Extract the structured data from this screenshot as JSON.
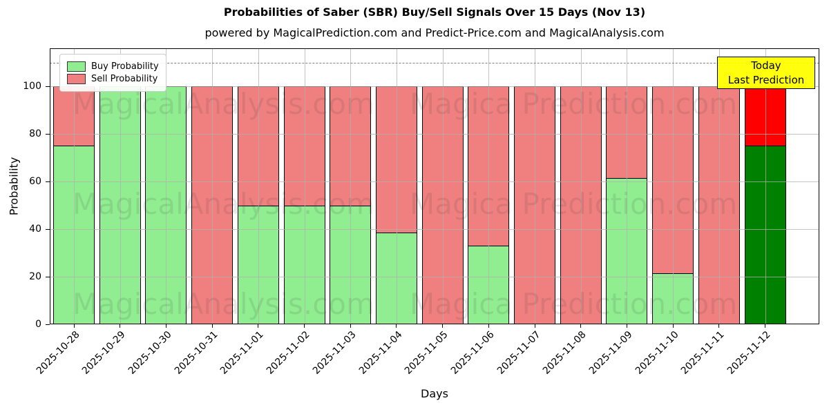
{
  "title": "Probabilities of Saber (SBR) Buy/Sell Signals Over 15 Days (Nov 13)",
  "subtitle": "powered by MagicalPrediction.com and Predict-Price.com and MagicalAnalysis.com",
  "axes": {
    "xlabel": "Days",
    "ylabel": "Probability",
    "yticks": [
      0,
      20,
      40,
      60,
      80,
      100
    ],
    "ylim": [
      0,
      116
    ],
    "grid": true,
    "threshold_line": {
      "y": 110,
      "style": "dashed",
      "color": "#7f7f7f"
    }
  },
  "legend": {
    "position": "upper left",
    "items": [
      {
        "label": "Buy Probability",
        "color": "#90ee90"
      },
      {
        "label": "Sell Probability",
        "color": "#f08080"
      }
    ]
  },
  "annotation": {
    "line1": "Today",
    "line2": "Last Prediction",
    "bg": "#ffff00",
    "border": "#000000"
  },
  "watermarks": {
    "left": "MagicalAnalysis.com",
    "right": "Magica Prediction.com",
    "color": "#3c3c3c",
    "opacity": 0.12
  },
  "chart_data": {
    "type": "bar",
    "stacked": true,
    "title": "Probabilities of Saber (SBR) Buy/Sell Signals Over 15 Days (Nov 13)",
    "xlabel": "Days",
    "ylabel": "Probability",
    "ylim": [
      0,
      116
    ],
    "categories": [
      "2025-10-28",
      "2025-10-29",
      "2025-10-30",
      "2025-10-31",
      "2025-11-01",
      "2025-11-02",
      "2025-11-03",
      "2025-11-04",
      "2025-11-05",
      "2025-11-06",
      "2025-11-07",
      "2025-11-08",
      "2025-11-09",
      "2025-11-10",
      "2025-11-11",
      "2025-11-12"
    ],
    "series": [
      {
        "name": "Buy Probability",
        "color": "#90ee90",
        "values": [
          75,
          100,
          100,
          0,
          50,
          50,
          50,
          38.5,
          0,
          33,
          0,
          0,
          61.5,
          21.5,
          0,
          75
        ]
      },
      {
        "name": "Sell Probability",
        "color": "#f08080",
        "values": [
          25,
          0,
          0,
          100,
          50,
          50,
          50,
          61.5,
          100,
          67,
          100,
          100,
          38.5,
          78.5,
          100,
          25
        ]
      }
    ],
    "bar_edge_color": "#000000",
    "today": {
      "index": 15,
      "buy_color": "#008000",
      "sell_color": "#ff0000",
      "label": "Today Last Prediction"
    }
  }
}
